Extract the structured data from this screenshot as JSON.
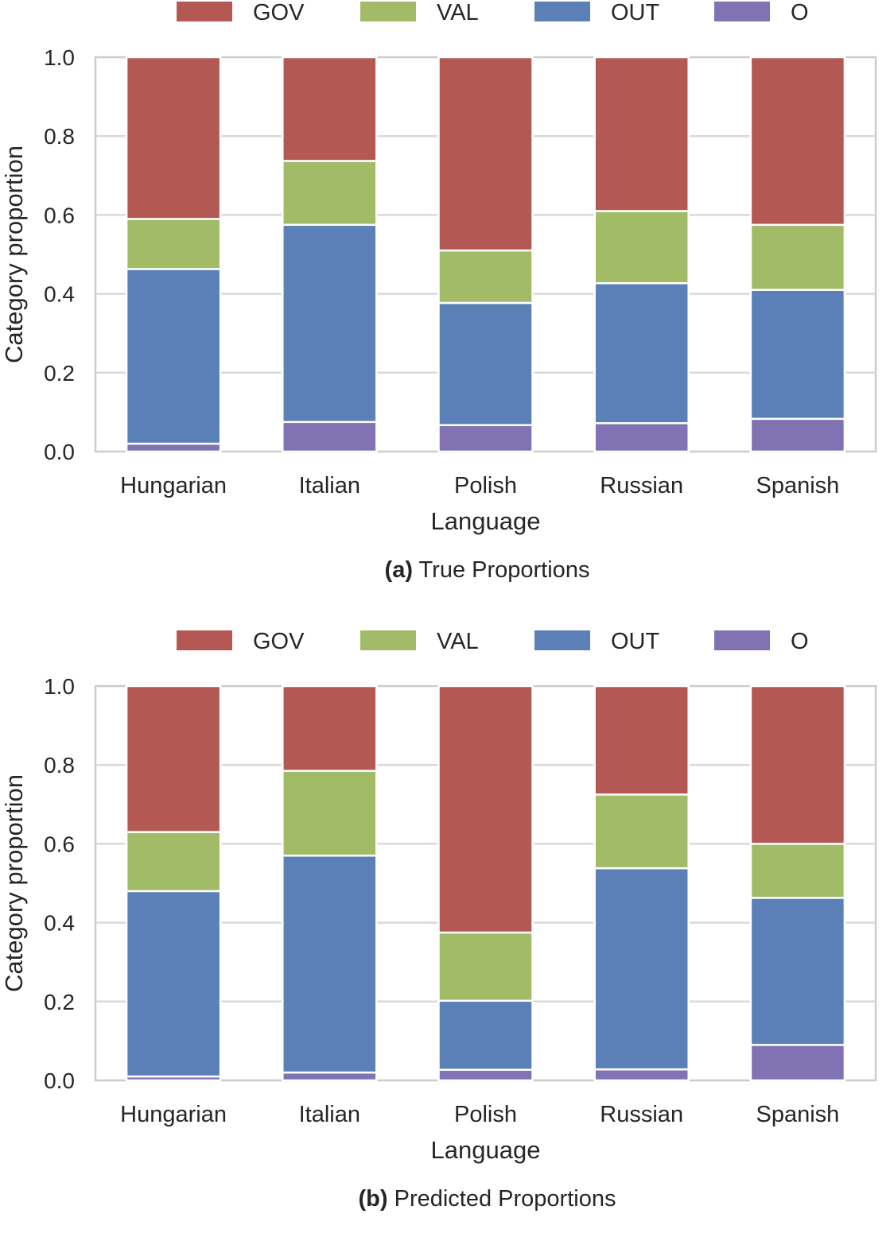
{
  "chart_data": [
    {
      "type": "bar",
      "stacked": true,
      "panel_label": "(a)",
      "caption": "True Proportions",
      "xlabel": "Language",
      "ylabel": "Category proportion",
      "ylim": [
        0,
        1.0
      ],
      "yticks": [
        "0.0",
        "0.2",
        "0.4",
        "0.6",
        "0.8",
        "1.0"
      ],
      "grid": "horizontal",
      "legend_placement": "top",
      "categories": [
        "Hungarian",
        "Italian",
        "Polish",
        "Russian",
        "Spanish"
      ],
      "series": [
        {
          "name": "O",
          "color": "#8172b3",
          "values": [
            0.02,
            0.075,
            0.067,
            0.072,
            0.083
          ]
        },
        {
          "name": "OUT",
          "color": "#5a80b7",
          "values": [
            0.443,
            0.5,
            0.31,
            0.355,
            0.327
          ]
        },
        {
          "name": "VAL",
          "color": "#a1bb67",
          "values": [
            0.127,
            0.162,
            0.133,
            0.183,
            0.165
          ]
        },
        {
          "name": "GOV",
          "color": "#b35853",
          "values": [
            0.41,
            0.263,
            0.49,
            0.39,
            0.425
          ]
        }
      ]
    },
    {
      "type": "bar",
      "stacked": true,
      "panel_label": "(b)",
      "caption": "Predicted Proportions",
      "xlabel": "Language",
      "ylabel": "Category proportion",
      "ylim": [
        0,
        1.0
      ],
      "yticks": [
        "0.0",
        "0.2",
        "0.4",
        "0.6",
        "0.8",
        "1.0"
      ],
      "grid": "horizontal",
      "legend_placement": "top",
      "categories": [
        "Hungarian",
        "Italian",
        "Polish",
        "Russian",
        "Spanish"
      ],
      "series": [
        {
          "name": "O",
          "color": "#8172b3",
          "values": [
            0.01,
            0.02,
            0.027,
            0.028,
            0.09
          ]
        },
        {
          "name": "OUT",
          "color": "#5a80b7",
          "values": [
            0.47,
            0.55,
            0.175,
            0.51,
            0.373
          ]
        },
        {
          "name": "VAL",
          "color": "#a1bb67",
          "values": [
            0.15,
            0.215,
            0.173,
            0.187,
            0.137
          ]
        },
        {
          "name": "GOV",
          "color": "#b35853",
          "values": [
            0.37,
            0.215,
            0.625,
            0.275,
            0.4
          ]
        }
      ]
    }
  ],
  "legend_order": [
    "GOV",
    "VAL",
    "OUT",
    "O"
  ]
}
